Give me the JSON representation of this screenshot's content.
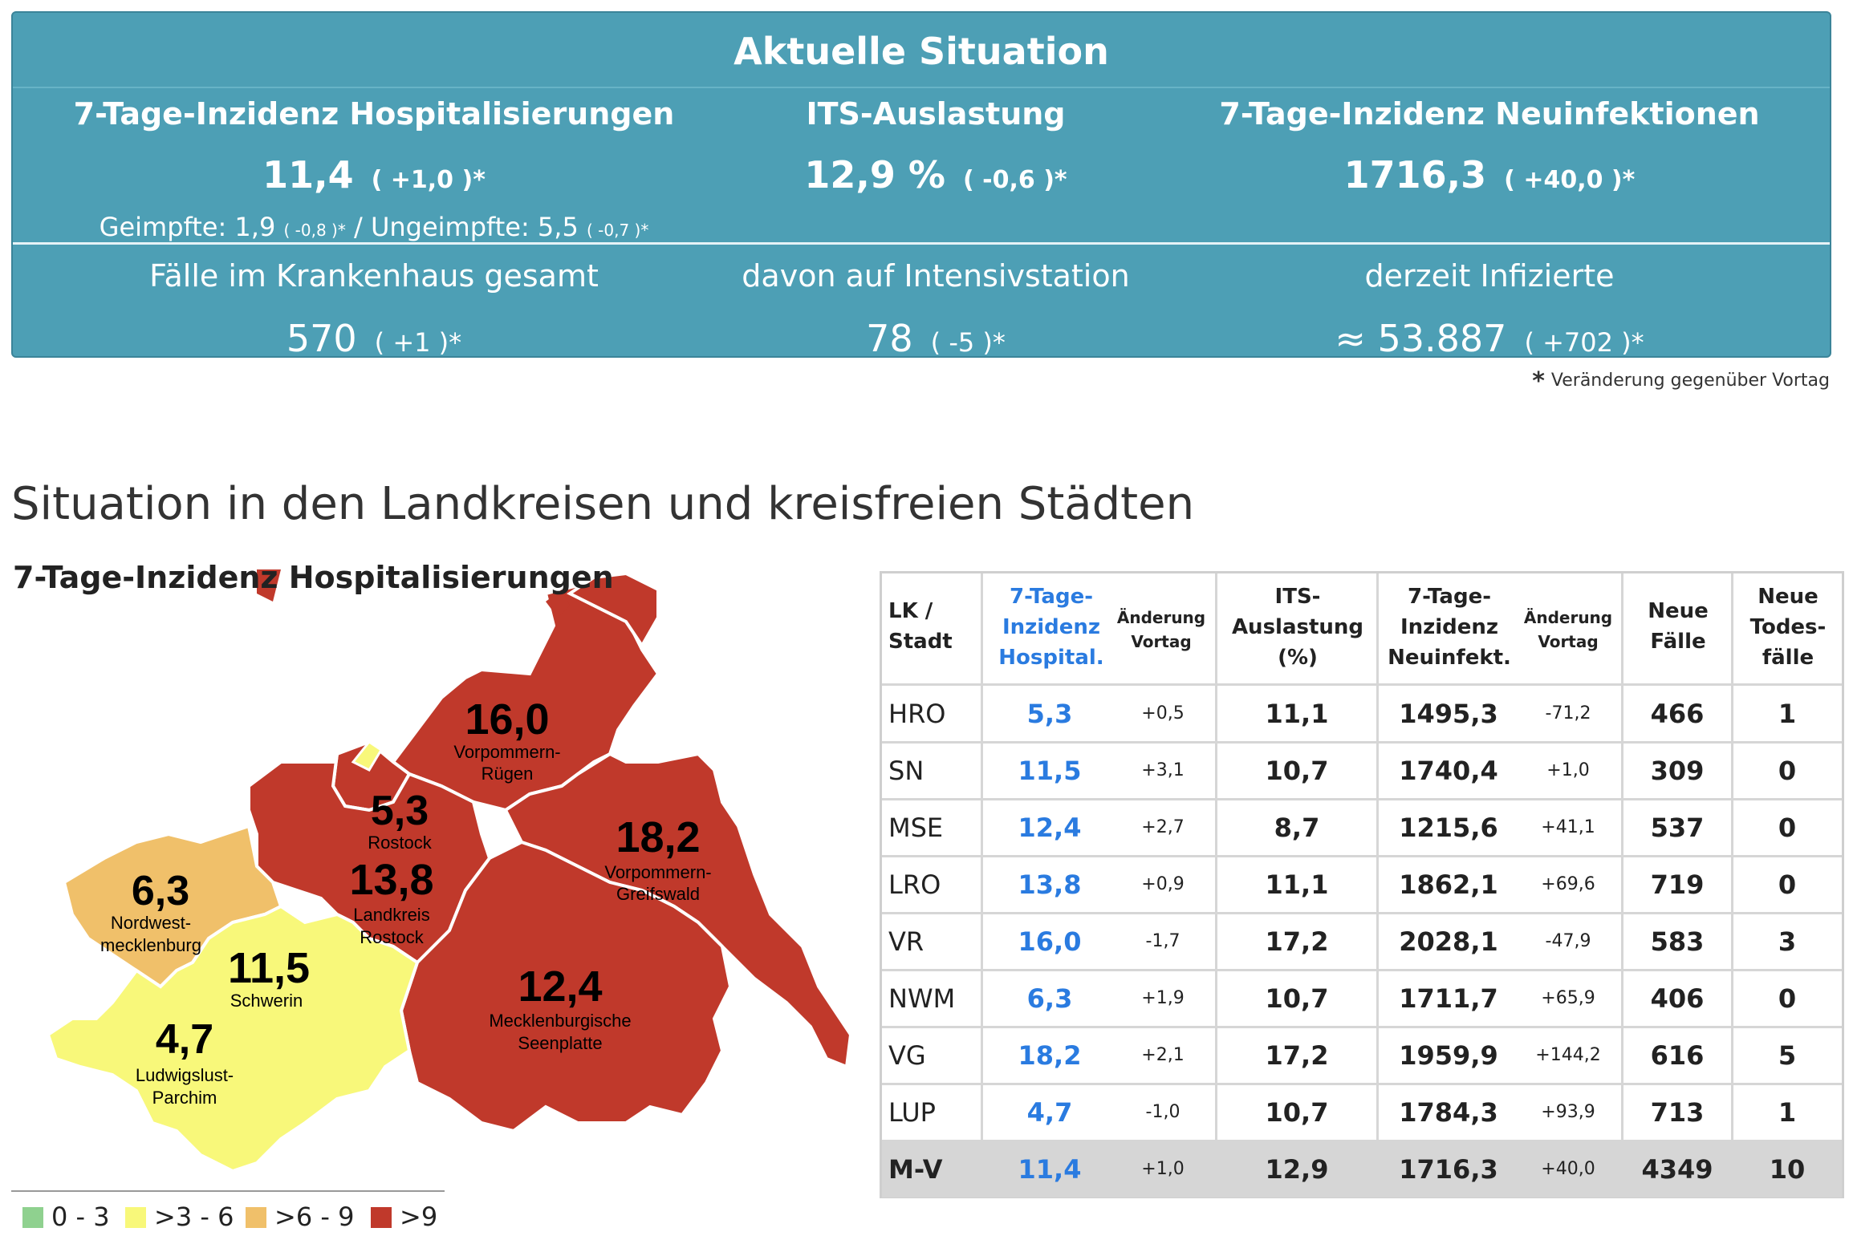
{
  "summary": {
    "title": "Aktuelle Situation",
    "hosp": {
      "label": "7-Tage-Inzidenz Hospitalisierungen",
      "value": "11,4",
      "change": "( +1,0 )*",
      "vacc_label": "Geimpfte: 1,9",
      "vacc_change": "( -0,8 )*",
      "sep": "/",
      "unvacc_label": "Ungeimpfte: 5,5",
      "unvacc_change": "( -0,7 )*"
    },
    "its": {
      "label": "ITS-Auslastung",
      "value": "12,9 %",
      "change": "( -0,6 )*"
    },
    "inf": {
      "label": "7-Tage-Inzidenz Neuinfektionen",
      "value": "1716,3",
      "change": "( +40,0 )*"
    },
    "hospital_total": {
      "label": "Fälle im Krankenhaus gesamt",
      "value": "570",
      "change": "( +1 )*"
    },
    "icu": {
      "label": "davon auf Intensivstation",
      "value": "78",
      "change": "( -5 )*"
    },
    "infected": {
      "label": "derzeit Infizierte",
      "value": "≈ 53.887",
      "change": "( +702 )*"
    }
  },
  "footnote": {
    "star": "*",
    "text": "Veränderung gegenüber Vortag"
  },
  "section_title": "Situation in den Landkreisen und kreisfreien Städten",
  "map": {
    "title": "7-Tage-Inzidenz Hospitalisierungen",
    "colors": {
      "red": "#c0392b",
      "orange": "#f0c06a",
      "yellow": "#f8f87a",
      "green": "#8fd18f"
    },
    "regions": [
      {
        "value": "16,0",
        "name1": "Vorpommern-",
        "name2": "Rügen"
      },
      {
        "value": "5,3",
        "name1": "Rostock",
        "name2": ""
      },
      {
        "value": "13,8",
        "name1": "Landkreis",
        "name2": "Rostock"
      },
      {
        "value": "18,2",
        "name1": "Vorpommern-",
        "name2": "Greifswald"
      },
      {
        "value": "6,3",
        "name1": "Nordwest-",
        "name2": "mecklenburg"
      },
      {
        "value": "11,5",
        "name1": "Schwerin",
        "name2": ""
      },
      {
        "value": "12,4",
        "name1": "Mecklenburgische",
        "name2": "Seenplatte"
      },
      {
        "value": "4,7",
        "name1": "Ludwigslust-",
        "name2": "Parchim"
      }
    ]
  },
  "legend": [
    {
      "label": "0 - 3",
      "color": "#8fd18f"
    },
    {
      "label": ">3 - 6",
      "color": "#f8f87a"
    },
    {
      "label": ">6 - 9",
      "color": "#f0c06a"
    },
    {
      "label": ">9",
      "color": "#c0392b"
    }
  ],
  "table": {
    "headers": {
      "lk": [
        "LK /",
        "Stadt"
      ],
      "hosp": [
        "7-Tage-",
        "Inzidenz",
        "Hospital."
      ],
      "hosp_chg": [
        "Änderung",
        "Vortag"
      ],
      "its": [
        "ITS-",
        "Auslastung",
        "(%)"
      ],
      "inf": [
        "7-Tage-",
        "Inzidenz",
        "Neuinfekt."
      ],
      "inf_chg": [
        "Änderung",
        "Vortag"
      ],
      "cases": [
        "Neue",
        "Fälle"
      ],
      "deaths": [
        "Neue",
        "Todes-",
        "fälle"
      ]
    },
    "rows": [
      {
        "lk": "HRO",
        "hosp": "5,3",
        "hosp_chg": "+0,5",
        "its": "11,1",
        "inf": "1495,3",
        "inf_chg": "-71,2",
        "cases": "466",
        "deaths": "1"
      },
      {
        "lk": "SN",
        "hosp": "11,5",
        "hosp_chg": "+3,1",
        "its": "10,7",
        "inf": "1740,4",
        "inf_chg": "+1,0",
        "cases": "309",
        "deaths": "0"
      },
      {
        "lk": "MSE",
        "hosp": "12,4",
        "hosp_chg": "+2,7",
        "its": "8,7",
        "inf": "1215,6",
        "inf_chg": "+41,1",
        "cases": "537",
        "deaths": "0"
      },
      {
        "lk": "LRO",
        "hosp": "13,8",
        "hosp_chg": "+0,9",
        "its": "11,1",
        "inf": "1862,1",
        "inf_chg": "+69,6",
        "cases": "719",
        "deaths": "0"
      },
      {
        "lk": "VR",
        "hosp": "16,0",
        "hosp_chg": "-1,7",
        "its": "17,2",
        "inf": "2028,1",
        "inf_chg": "-47,9",
        "cases": "583",
        "deaths": "3"
      },
      {
        "lk": "NWM",
        "hosp": "6,3",
        "hosp_chg": "+1,9",
        "its": "10,7",
        "inf": "1711,7",
        "inf_chg": "+65,9",
        "cases": "406",
        "deaths": "0"
      },
      {
        "lk": "VG",
        "hosp": "18,2",
        "hosp_chg": "+2,1",
        "its": "17,2",
        "inf": "1959,9",
        "inf_chg": "+144,2",
        "cases": "616",
        "deaths": "5"
      },
      {
        "lk": "LUP",
        "hosp": "4,7",
        "hosp_chg": "-1,0",
        "its": "10,7",
        "inf": "1784,3",
        "inf_chg": "+93,9",
        "cases": "713",
        "deaths": "1"
      }
    ],
    "total": {
      "lk": "M-V",
      "hosp": "11,4",
      "hosp_chg": "+1,0",
      "its": "12,9",
      "inf": "1716,3",
      "inf_chg": "+40,0",
      "cases": "4349",
      "deaths": "10"
    }
  }
}
